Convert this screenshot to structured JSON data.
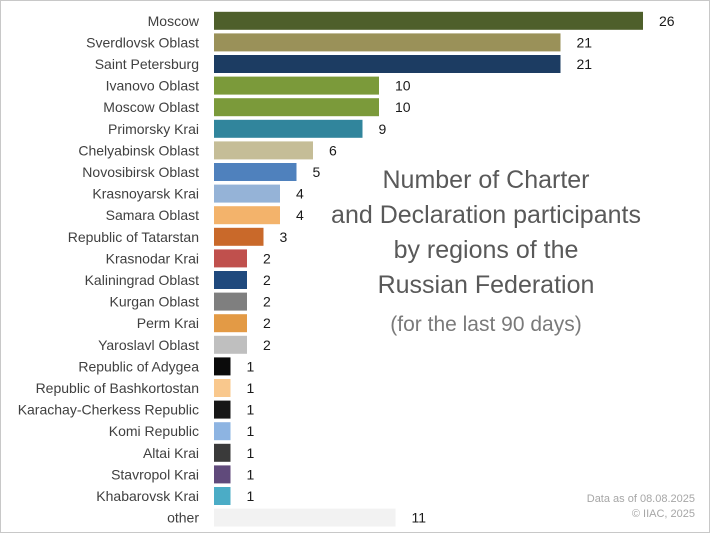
{
  "chart_data": {
    "type": "bar",
    "orientation": "horizontal",
    "title_lines": [
      "Number of Charter",
      "and Declaration participants",
      "by regions of the",
      "Russian Federation"
    ],
    "subtitle": "(for the last 90 days)",
    "xlabel": "",
    "ylabel": "",
    "xlim": [
      0,
      26
    ],
    "grid": false,
    "legend": "none",
    "categories": [
      "Moscow",
      "Sverdlovsk Oblast",
      "Saint Petersburg",
      "Ivanovo Oblast",
      "Moscow Oblast",
      "Primorsky Krai",
      "Chelyabinsk Oblast",
      "Novosibirsk Oblast",
      "Krasnoyarsk Krai",
      "Samara Oblast",
      "Republic of Tatarstan",
      "Krasnodar Krai",
      "Kaliningrad Oblast",
      "Kurgan Oblast",
      "Perm Krai",
      "Yaroslavl Oblast",
      "Republic of Adygea",
      "Republic of Bashkortostan",
      "Karachay-Cherkess Republic",
      "Komi Republic",
      "Altai Krai",
      "Stavropol Krai",
      "Khabarovsk Krai",
      "other"
    ],
    "values": [
      26,
      21,
      21,
      10,
      10,
      9,
      6,
      5,
      4,
      4,
      3,
      2,
      2,
      2,
      2,
      2,
      1,
      1,
      1,
      1,
      1,
      1,
      1,
      11
    ],
    "colors": [
      "#4e5f2b",
      "#9a9159",
      "#1c3c62",
      "#7b9a3a",
      "#7b9a3a",
      "#31859c",
      "#c5bd97",
      "#4f81bd",
      "#95b3d7",
      "#f3b36b",
      "#c9692a",
      "#c0504d",
      "#1f497d",
      "#7f7f7f",
      "#e39a45",
      "#bfbfbf",
      "#0b0b0b",
      "#f9c88d",
      "#171717",
      "#8db4e2",
      "#3a3a3a",
      "#604a7b",
      "#4bacc6",
      "#f2f2f2"
    ]
  },
  "footnote": {
    "line1": "Data as of 08.08.2025",
    "line2": "© IIAC, 2025"
  }
}
